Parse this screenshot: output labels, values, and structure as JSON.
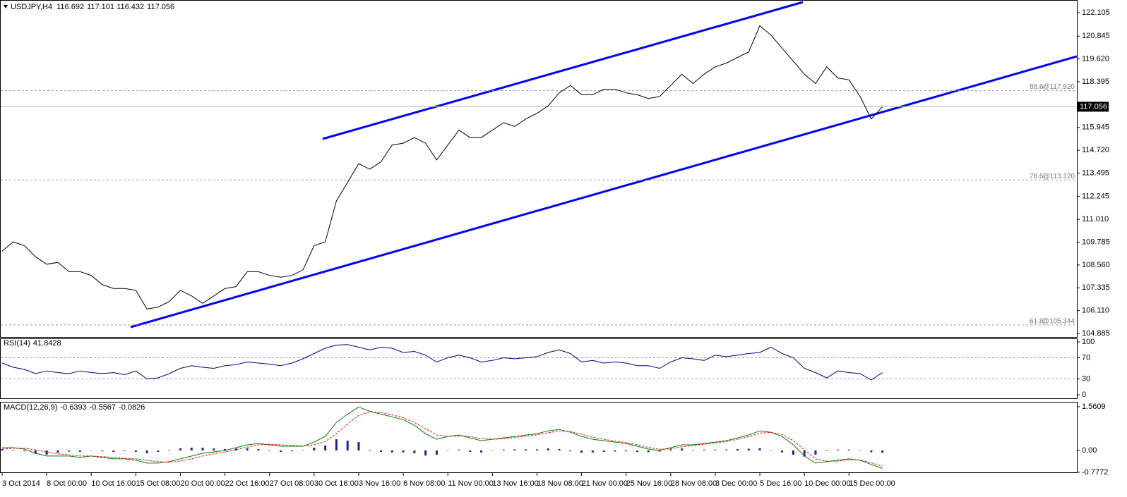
{
  "chart_data": [
    {
      "type": "line",
      "title": "USDJPY,H4",
      "ohlc": [
        116.692,
        117.101,
        116.432
      ],
      "color": "#000000",
      "categories": [
        "3 Oct 2014",
        null,
        null,
        null,
        "8 Oct 00:00",
        null,
        null,
        null,
        "10 Oct 16:00",
        null,
        null,
        null,
        "15 Oct 08:00",
        null,
        null,
        null,
        "20 Oct 00:00",
        null,
        null,
        null,
        "22 Oct 16:00",
        null,
        null,
        null,
        "27 Oct 08:00",
        null,
        null,
        null,
        "30 Oct 16:00",
        null,
        null,
        null,
        "3 Nov 16:00",
        null,
        null,
        null,
        "6 Nov 08:00",
        null,
        null,
        null,
        "11 Nov 00:00",
        null,
        null,
        null,
        "13 Nov 16:00",
        null,
        null,
        null,
        "18 Nov 08:00",
        null,
        null,
        null,
        "21 Nov 00:00",
        null,
        null,
        null,
        "25 Nov 16:00",
        null,
        null,
        null,
        "28 Nov 08:00",
        null,
        null,
        null,
        "3 Dec 00:00",
        null,
        null,
        null,
        "5 Dec 16:00",
        null,
        null,
        null,
        "10 Dec 00:00",
        null,
        null,
        null,
        "15 Dec 00:00",
        null,
        null,
        null
      ],
      "values": [
        109.3,
        109.8,
        109.6,
        109.0,
        108.6,
        108.7,
        108.2,
        108.2,
        108.0,
        107.5,
        107.3,
        107.3,
        107.2,
        106.2,
        106.3,
        106.6,
        107.2,
        106.9,
        106.5,
        106.9,
        107.3,
        107.4,
        108.2,
        108.2,
        108.0,
        107.9,
        108.0,
        108.3,
        109.6,
        109.8,
        112.0,
        113.0,
        114.0,
        113.7,
        114.1,
        115.0,
        115.1,
        115.4,
        115.1,
        114.2,
        115.0,
        115.8,
        115.4,
        115.4,
        115.8,
        116.2,
        116.0,
        116.4,
        116.7,
        117.1,
        117.8,
        118.2,
        117.7,
        117.7,
        118.0,
        118.0,
        117.8,
        117.7,
        117.5,
        117.6,
        118.2,
        118.8,
        118.3,
        118.8,
        119.2,
        119.4,
        119.7,
        120.0,
        121.4,
        120.9,
        120.2,
        119.5,
        118.8,
        118.3,
        119.2,
        118.6,
        118.5,
        117.6,
        116.4,
        117.056
      ],
      "levels": [
        {
          "name": "88.6",
          "value": 117.92,
          "label": "@117.920"
        },
        {
          "name": "78.6",
          "value": 113.12,
          "label": "@113.120"
        },
        {
          "name": "61.8",
          "value": 105.344,
          "label": "@105.344"
        }
      ],
      "ylim": [
        104.696,
        122.786
      ],
      "yticks": [
        122.105,
        120.845,
        {
          "value": 119.62,
          "label": "119.620"
        },
        118.395,
        115.945,
        {
          "value": 114.72,
          "label": "114.720"
        },
        113.495,
        112.245,
        {
          "value": 111.01,
          "label": "111.010"
        },
        109.785,
        {
          "value": 108.56,
          "label": "108.560"
        },
        107.335,
        {
          "value": 106.11,
          "label": "106.110"
        },
        104.885
      ]
    },
    {
      "type": "line",
      "title": "RSI(14)",
      "color": "#00008b",
      "values": [
        60,
        52,
        48,
        40,
        45,
        42,
        40,
        45,
        42,
        40,
        42,
        38,
        45,
        30,
        32,
        40,
        50,
        55,
        52,
        50,
        55,
        57,
        62,
        60,
        58,
        55,
        60,
        68,
        78,
        88,
        94,
        95,
        90,
        85,
        90,
        88,
        80,
        82,
        75,
        62,
        70,
        75,
        70,
        62,
        65,
        70,
        68,
        70,
        72,
        80,
        85,
        78,
        62,
        65,
        60,
        62,
        60,
        55,
        55,
        50,
        62,
        70,
        68,
        65,
        75,
        72,
        75,
        78,
        80,
        90,
        78,
        70,
        50,
        42,
        32,
        45,
        42,
        40,
        28,
        41.8428
      ],
      "levels": [
        70,
        30
      ],
      "ylim": [
        -6.7,
        106.7
      ],
      "yticks": [
        100,
        70,
        30,
        0
      ]
    },
    {
      "type": "macd",
      "title": "MACD(12,26,9)",
      "series": [
        {
          "style": "line",
          "color": "#008000",
          "values": [
            0.1,
            0.1,
            0.05,
            -0.1,
            -0.2,
            -0.2,
            -0.2,
            -0.25,
            -0.2,
            -0.25,
            -0.3,
            -0.3,
            -0.35,
            -0.45,
            -0.45,
            -0.4,
            -0.3,
            -0.2,
            -0.1,
            -0.05,
            0.0,
            0.1,
            0.2,
            0.25,
            0.2,
            0.15,
            0.15,
            0.15,
            0.3,
            0.5,
            1.0,
            1.3,
            1.55,
            1.4,
            1.3,
            1.2,
            1.1,
            0.9,
            0.6,
            0.4,
            0.5,
            0.55,
            0.45,
            0.35,
            0.4,
            0.45,
            0.5,
            0.55,
            0.6,
            0.7,
            0.75,
            0.65,
            0.5,
            0.4,
            0.35,
            0.3,
            0.25,
            0.15,
            0.05,
            0.0,
            0.1,
            0.2,
            0.2,
            0.25,
            0.3,
            0.35,
            0.45,
            0.55,
            0.7,
            0.65,
            0.5,
            0.2,
            -0.2,
            -0.45,
            -0.4,
            -0.35,
            -0.3,
            -0.35,
            -0.5,
            -0.6393
          ]
        },
        {
          "style": "dashed",
          "color": "#ff0000",
          "values": [
            0.05,
            0.08,
            0.08,
            0.02,
            -0.05,
            -0.12,
            -0.16,
            -0.2,
            -0.2,
            -0.22,
            -0.25,
            -0.28,
            -0.3,
            -0.35,
            -0.4,
            -0.42,
            -0.38,
            -0.3,
            -0.2,
            -0.12,
            -0.05,
            0.03,
            0.12,
            0.2,
            0.22,
            0.2,
            0.18,
            0.16,
            0.2,
            0.32,
            0.6,
            0.95,
            1.25,
            1.38,
            1.35,
            1.27,
            1.17,
            1.0,
            0.78,
            0.55,
            0.5,
            0.52,
            0.5,
            0.42,
            0.4,
            0.42,
            0.46,
            0.51,
            0.56,
            0.63,
            0.7,
            0.68,
            0.58,
            0.47,
            0.4,
            0.34,
            0.28,
            0.2,
            0.11,
            0.04,
            0.06,
            0.13,
            0.18,
            0.22,
            0.27,
            0.32,
            0.4,
            0.49,
            0.62,
            0.65,
            0.57,
            0.35,
            0.02,
            -0.3,
            -0.38,
            -0.38,
            -0.33,
            -0.34,
            -0.44,
            -0.5567
          ]
        },
        {
          "style": "histogram",
          "color": "#2020a0",
          "values": [
            0.05,
            0.02,
            -0.03,
            -0.12,
            -0.15,
            -0.08,
            -0.04,
            -0.05,
            0,
            -0.03,
            -0.05,
            -0.02,
            -0.05,
            -0.1,
            -0.05,
            0.02,
            0.08,
            0.1,
            0.1,
            0.07,
            0.05,
            0.07,
            0.08,
            0.05,
            -0.02,
            -0.05,
            -0.03,
            -0.01,
            0.1,
            0.18,
            0.4,
            0.35,
            0.3,
            0.02,
            -0.05,
            -0.07,
            -0.07,
            -0.1,
            -0.18,
            -0.15,
            0,
            0.03,
            -0.05,
            -0.07,
            0,
            0.03,
            0.04,
            0.04,
            0.04,
            0.07,
            0.05,
            -0.03,
            -0.08,
            -0.07,
            -0.05,
            -0.04,
            -0.03,
            -0.05,
            -0.06,
            -0.04,
            0.04,
            0.07,
            0.02,
            0.03,
            0.03,
            0.03,
            0.05,
            0.06,
            0.08,
            0,
            -0.07,
            -0.15,
            -0.22,
            -0.15,
            -0.02,
            0.03,
            0.03,
            -0.01,
            -0.06,
            -0.0826
          ]
        }
      ],
      "ylim": [
        -0.781,
        1.737
      ],
      "yticks": [
        1.5609,
        {
          "value": 0,
          "label": "0.00"
        },
        -0.7772
      ]
    }
  ]
}
